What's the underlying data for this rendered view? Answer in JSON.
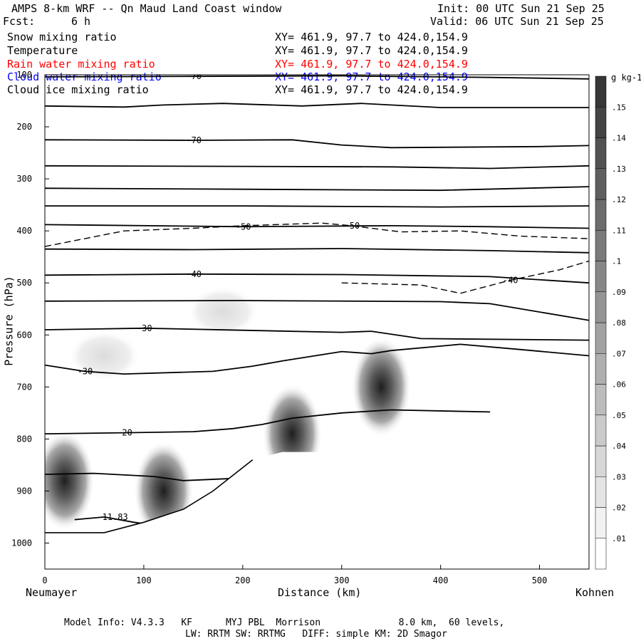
{
  "header": {
    "title": "AMPS 8-km WRF -- Qn Maud Land Coast window",
    "forecast_label": "Fcst:",
    "forecast_value": "6 h",
    "init": "Init: 00 UTC Sun 21 Sep 25",
    "valid": "Valid: 06 UTC Sun 21 Sep 25"
  },
  "fields": [
    {
      "name": "Snow mixing ratio",
      "xy": "XY= 461.9, 97.7 to 424.0,154.9",
      "color": "#000000"
    },
    {
      "name": "Temperature",
      "xy": "XY= 461.9, 97.7 to 424.0,154.9",
      "color": "#000000"
    },
    {
      "name": "Rain water mixing ratio",
      "xy": "XY= 461.9, 97.7 to 424.0,154.9",
      "color": "#ff0000"
    },
    {
      "name": "Cloud water mixing ratio",
      "xy": "XY= 461.9, 97.7 to 424.0,154.9",
      "color": "#0000ff"
    },
    {
      "name": "Cloud ice mixing ratio",
      "xy": "XY= 461.9, 97.7 to 424.0,154.9",
      "color": "#000000"
    }
  ],
  "chart_data": {
    "type": "cross-section contour",
    "xlabel": "Distance (km)",
    "ylabel": "Pressure (hPa)",
    "x_start_label": "Neumayer",
    "x_end_label": "Kohnen",
    "xlim": [
      0,
      550
    ],
    "ylim": [
      1050,
      100
    ],
    "x_ticks": [
      0,
      100,
      200,
      300,
      400,
      500
    ],
    "y_ticks": [
      100,
      200,
      300,
      400,
      500,
      600,
      700,
      800,
      900,
      1000
    ],
    "isotherms": [
      {
        "label": "-70",
        "points": [
          [
            0,
            104
          ],
          [
            150,
            103
          ],
          [
            300,
            102
          ],
          [
            450,
            105
          ],
          [
            550,
            108
          ]
        ]
      },
      {
        "label": "",
        "points": [
          [
            0,
            160
          ],
          [
            80,
            162
          ],
          [
            120,
            158
          ],
          [
            180,
            155
          ],
          [
            260,
            160
          ],
          [
            320,
            155
          ],
          [
            400,
            163
          ],
          [
            550,
            163
          ]
        ]
      },
      {
        "label": "-70",
        "points": [
          [
            0,
            225
          ],
          [
            150,
            226
          ],
          [
            250,
            225
          ],
          [
            300,
            235
          ],
          [
            350,
            240
          ],
          [
            500,
            238
          ],
          [
            550,
            236
          ]
        ]
      },
      {
        "label": "",
        "points": [
          [
            0,
            275
          ],
          [
            200,
            276
          ],
          [
            350,
            277
          ],
          [
            450,
            280
          ],
          [
            550,
            275
          ]
        ]
      },
      {
        "label": "",
        "points": [
          [
            0,
            318
          ],
          [
            200,
            320
          ],
          [
            400,
            322
          ],
          [
            550,
            315
          ]
        ]
      },
      {
        "label": "",
        "points": [
          [
            0,
            352
          ],
          [
            200,
            352
          ],
          [
            400,
            354
          ],
          [
            550,
            352
          ]
        ]
      },
      {
        "label": "-50",
        "points": [
          [
            0,
            388
          ],
          [
            200,
            392
          ],
          [
            350,
            390
          ],
          [
            450,
            392
          ],
          [
            550,
            395
          ]
        ]
      },
      {
        "label": "",
        "points": [
          [
            0,
            435
          ],
          [
            150,
            436
          ],
          [
            300,
            434
          ],
          [
            450,
            438
          ],
          [
            550,
            442
          ]
        ]
      },
      {
        "label": "-40",
        "points": [
          [
            0,
            485
          ],
          [
            150,
            483
          ],
          [
            300,
            484
          ],
          [
            450,
            488
          ],
          [
            550,
            500
          ]
        ]
      },
      {
        "label": "",
        "points": [
          [
            0,
            535
          ],
          [
            200,
            534
          ],
          [
            400,
            536
          ],
          [
            450,
            540
          ],
          [
            550,
            572
          ]
        ]
      },
      {
        "label": "-30",
        "points": [
          [
            0,
            590
          ],
          [
            100,
            587
          ],
          [
            200,
            591
          ],
          [
            300,
            595
          ],
          [
            330,
            593
          ],
          [
            380,
            607
          ],
          [
            550,
            610
          ]
        ]
      },
      {
        "label": "-30",
        "points": [
          [
            0,
            658
          ],
          [
            40,
            670
          ],
          [
            80,
            675
          ],
          [
            170,
            670
          ],
          [
            210,
            660
          ],
          [
            240,
            650
          ],
          [
            300,
            632
          ],
          [
            330,
            636
          ],
          [
            350,
            630
          ],
          [
            420,
            618
          ],
          [
            480,
            628
          ],
          [
            550,
            640
          ]
        ]
      },
      {
        "label": "-20",
        "points": [
          [
            0,
            790
          ],
          [
            80,
            788
          ],
          [
            150,
            786
          ],
          [
            190,
            780
          ],
          [
            220,
            772
          ],
          [
            250,
            760
          ],
          [
            300,
            750
          ],
          [
            350,
            744
          ],
          [
            450,
            748
          ]
        ]
      },
      {
        "label": "",
        "points": [
          [
            0,
            868
          ],
          [
            50,
            866
          ],
          [
            110,
            872
          ],
          [
            140,
            880
          ],
          [
            200,
            875
          ]
        ]
      },
      {
        "label": "-11.83",
        "points": [
          [
            30,
            955
          ],
          [
            60,
            950
          ],
          [
            90,
            960
          ],
          [
            120,
            968
          ]
        ]
      }
    ],
    "dashed_contours": [
      {
        "label": "-50",
        "points": [
          [
            0,
            430
          ],
          [
            80,
            400
          ],
          [
            150,
            395
          ],
          [
            200,
            390
          ],
          [
            280,
            385
          ],
          [
            310,
            390
          ],
          [
            330,
            395
          ],
          [
            360,
            402
          ],
          [
            420,
            400
          ],
          [
            480,
            410
          ],
          [
            550,
            415
          ]
        ]
      },
      {
        "label": "-40",
        "points": [
          [
            300,
            500
          ],
          [
            380,
            504
          ],
          [
            420,
            520
          ],
          [
            470,
            495
          ],
          [
            520,
            475
          ],
          [
            550,
            458
          ]
        ]
      }
    ],
    "colorbar": {
      "unit": "g kg-1",
      "levels": [
        0.01,
        0.02,
        0.03,
        0.04,
        0.05,
        0.06,
        0.07,
        0.08,
        0.09,
        0.1,
        0.11,
        0.12,
        0.13,
        0.14,
        0.15
      ]
    },
    "snow_max_regions": [
      {
        "x": 20,
        "p": 880,
        "value": 0.14
      },
      {
        "x": 120,
        "p": 900,
        "value": 0.14
      },
      {
        "x": 250,
        "p": 790,
        "value": 0.15
      },
      {
        "x": 340,
        "p": 700,
        "value": 0.15
      },
      {
        "x": 60,
        "p": 640,
        "value": 0.03
      },
      {
        "x": 180,
        "p": 555,
        "value": 0.02
      }
    ]
  },
  "footer": {
    "line1": "Model Info: V4.3.3   KF      MYJ PBL  Morrison              8.0 km,  60 levels,",
    "line2": "LW: RRTM SW: RRTMG   DIFF: simple KM: 2D Smagor"
  }
}
